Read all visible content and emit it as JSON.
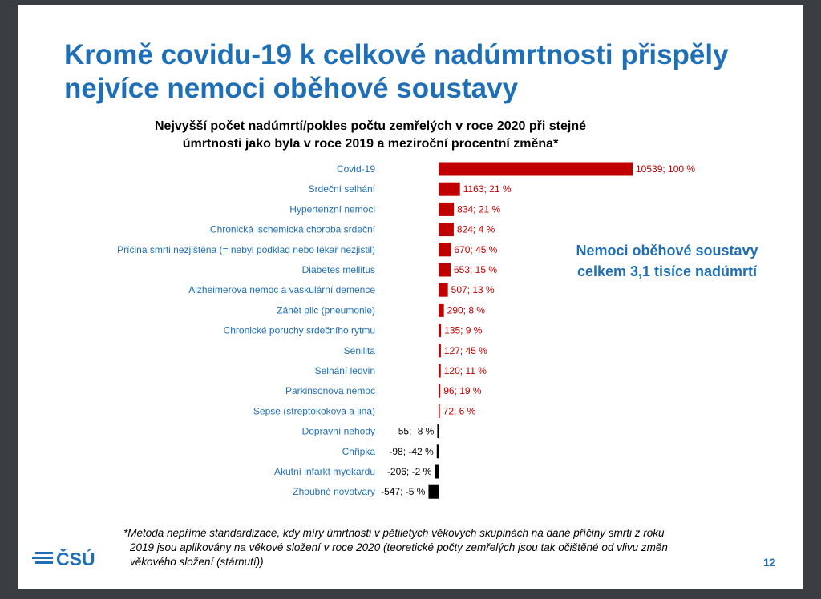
{
  "slide": {
    "title_line1": "Kromě covidu-19 k celkové nadúmrtnosti přispěly",
    "title_line2": "nejvíce nemoci oběhové soustavy",
    "callout_line1": "Nemoci oběhové soustavy",
    "callout_line2": "celkem 3,1 tisíce nadúmrtí",
    "footnote_line1": "*Metoda nepřímé standardizace, kdy míry úmrtnosti v pětiletých věkových skupinách na dané příčiny smrti z roku",
    "footnote_line2": "2019 jsou aplikovány na věkové složení v roce 2020 (teoretické počty zemřelých jsou tak očištěné od vlivu změn",
    "footnote_line3": "věkového složení (stárnutí))",
    "logo_text": "ČSÚ",
    "page_number": "12"
  },
  "colors": {
    "accent_blue": "#1f6fb6",
    "positive_bar": "#c00000",
    "negative_bar": "#000000",
    "positive_label": "#c00000",
    "negative_label": "#000000"
  },
  "chart_data": {
    "type": "bar",
    "orientation": "horizontal",
    "title_line1": "Nejvyšší počet nadúmrtí/pokles počtu zemřelých v roce 2020 při stejné",
    "title_line2": "úmrtnosti jako byla v roce 2019 a meziroční procentní změna*",
    "categories": [
      "Covid-19",
      "Srdeční selhání",
      "Hypertenzní nemoci",
      "Chronická ischemická choroba srdeční",
      "Příčina smrti nezjištěna (= nebyl podklad nebo lékař nezjistil)",
      "Diabetes mellitus",
      "Alzheimerova nemoc a vaskulární demence",
      "Zánět plic (pneumonie)",
      "Chronické poruchy srdečního rytmu",
      "Senilita",
      "Selhání ledvin",
      "Parkinsonova nemoc",
      "Sepse (streptokoková a jiná)",
      "Dopravní nehody",
      "Chřipka",
      "Akutní infarkt myokardu",
      "Zhoubné novotvary"
    ],
    "values": [
      10539,
      1163,
      834,
      824,
      670,
      653,
      507,
      290,
      135,
      127,
      120,
      96,
      72,
      -55,
      -98,
      -206,
      -547
    ],
    "data_labels": [
      "10539; 100 %",
      "1163; 21 %",
      "834; 21 %",
      "824; 4 %",
      "670; 45 %",
      "653; 15 %",
      "507; 13 %",
      "290; 8 %",
      "135; 9 %",
      "127; 45 %",
      "120; 11 %",
      "96; 19 %",
      "72; 6 %",
      "-55; -8 %",
      "-98; -42 %",
      "-206; -2 %",
      "-547; -5 %"
    ],
    "grid": false,
    "legend": false
  }
}
